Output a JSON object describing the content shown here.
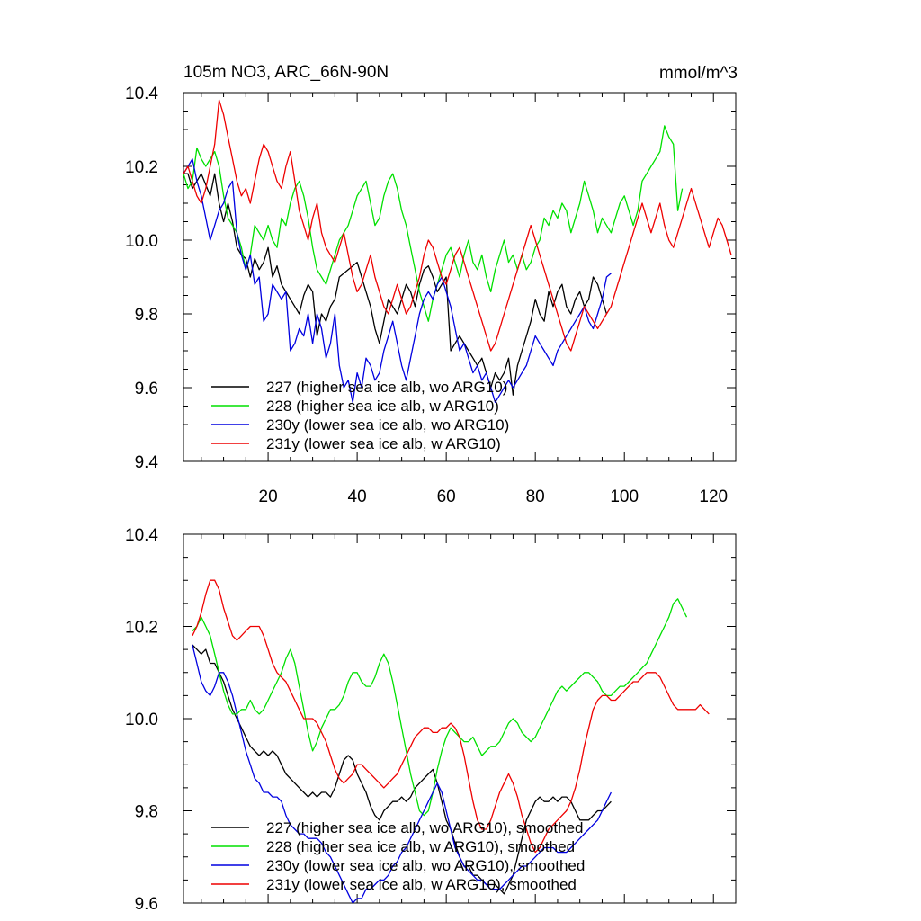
{
  "title": "105m NO3, ARC_66N-90N",
  "units": "mmol/m^3",
  "colors": {
    "s227": "#000000",
    "s228": "#00e000",
    "s230y": "#0000e0",
    "s231y": "#ee0000"
  },
  "chart_data": [
    {
      "type": "line",
      "title": "105m NO3, ARC_66N-90N",
      "ylabel": "mmol/m^3",
      "xlim": [
        1,
        125
      ],
      "ylim": [
        9.4,
        10.4
      ],
      "xticks": [
        20,
        40,
        60,
        80,
        100,
        120
      ],
      "yticks": [
        9.4,
        9.6,
        9.8,
        10.0,
        10.2,
        10.4
      ],
      "legend_position": "bottom-left",
      "series": [
        {
          "name": "227 (higher sea ice alb, wo ARG10)",
          "color": "#000000",
          "x_start": 1,
          "values": [
            10.18,
            10.18,
            10.14,
            10.16,
            10.18,
            10.15,
            10.12,
            10.18,
            10.1,
            10.05,
            10.1,
            10.05,
            9.98,
            9.96,
            9.95,
            9.9,
            9.95,
            9.92,
            9.94,
            9.98,
            9.9,
            9.93,
            9.88,
            9.86,
            9.84,
            9.82,
            9.8,
            9.85,
            9.88,
            9.86,
            9.74,
            9.8,
            9.78,
            9.82,
            9.84,
            9.9,
            9.91,
            9.92,
            9.93,
            9.94,
            9.9,
            9.86,
            9.82,
            9.76,
            9.72,
            9.78,
            9.84,
            9.82,
            9.8,
            9.84,
            9.88,
            9.86,
            9.82,
            9.88,
            9.92,
            9.93,
            9.9,
            9.86,
            9.88,
            9.9,
            9.7,
            9.72,
            9.74,
            9.72,
            9.7,
            9.68,
            9.66,
            9.68,
            9.64,
            9.6,
            9.64,
            9.62,
            9.64,
            9.68,
            9.58,
            9.66,
            9.7,
            9.74,
            9.78,
            9.84,
            9.8,
            9.78,
            9.86,
            9.82,
            9.86,
            9.88,
            9.82,
            9.8,
            9.84,
            9.86,
            9.82,
            9.84,
            9.9,
            9.88,
            9.84,
            9.8
          ]
        },
        {
          "name": "228 (higher sea ice alb, w ARG10)",
          "color": "#00e000",
          "x_start": 1,
          "values": [
            10.18,
            10.14,
            10.16,
            10.25,
            10.22,
            10.2,
            10.22,
            10.24,
            10.2,
            10.12,
            10.06,
            10.04,
            10.02,
            9.98,
            9.92,
            9.96,
            10.04,
            10.02,
            10.0,
            10.04,
            10.0,
            9.98,
            10.06,
            10.04,
            10.1,
            10.14,
            10.16,
            10.12,
            10.06,
            9.98,
            9.92,
            9.9,
            9.88,
            9.92,
            9.96,
            10.0,
            10.02,
            10.04,
            10.08,
            10.12,
            10.14,
            10.16,
            10.1,
            10.04,
            10.06,
            10.12,
            10.16,
            10.18,
            10.14,
            10.08,
            10.04,
            9.98,
            9.92,
            9.86,
            9.82,
            9.78,
            9.84,
            9.88,
            9.92,
            9.96,
            9.98,
            9.94,
            9.9,
            9.96,
            10.0,
            9.94,
            9.92,
            9.96,
            9.9,
            9.86,
            9.92,
            9.96,
            10.0,
            9.94,
            9.96,
            9.92,
            9.96,
            9.92,
            9.94,
            9.98,
            10.0,
            10.06,
            10.04,
            10.08,
            10.06,
            10.1,
            10.08,
            10.02,
            10.06,
            10.1,
            10.16,
            10.12,
            10.08,
            10.02,
            10.06,
            10.04,
            10.02,
            10.06,
            10.1,
            10.12,
            10.08,
            10.04,
            10.08,
            10.16,
            10.18,
            10.2,
            10.22,
            10.24,
            10.31,
            10.28,
            10.26,
            10.08,
            10.14
          ]
        },
        {
          "name": "230y (lower sea ice alb, wo ARG10)",
          "color": "#0000e0",
          "x_start": 1,
          "values": [
            10.18,
            10.2,
            10.22,
            10.16,
            10.12,
            10.06,
            10.0,
            10.04,
            10.08,
            10.1,
            10.14,
            10.16,
            10.02,
            9.96,
            9.92,
            9.96,
            9.88,
            9.9,
            9.78,
            9.8,
            9.88,
            9.86,
            9.84,
            9.86,
            9.7,
            9.72,
            9.76,
            9.74,
            9.8,
            9.72,
            9.8,
            9.76,
            9.68,
            9.72,
            9.8,
            9.66,
            9.6,
            9.62,
            9.56,
            9.64,
            9.6,
            9.68,
            9.66,
            9.62,
            9.64,
            9.7,
            9.74,
            9.78,
            9.72,
            9.66,
            9.62,
            9.68,
            9.74,
            9.8,
            9.84,
            9.86,
            9.84,
            9.88,
            9.9,
            9.86,
            9.82,
            9.76,
            9.7,
            9.72,
            9.68,
            9.64,
            9.66,
            9.62,
            9.64,
            9.6,
            9.56,
            9.58,
            9.6,
            9.62,
            9.6,
            9.62,
            9.64,
            9.66,
            9.7,
            9.74,
            9.72,
            9.7,
            9.68,
            9.66,
            9.7,
            9.72,
            9.74,
            9.76,
            9.78,
            9.8,
            9.82,
            9.78,
            9.76,
            9.8,
            9.84,
            9.9,
            9.91
          ]
        },
        {
          "name": "231y (lower sea ice alb, w ARG10)",
          "color": "#ee0000",
          "x_start": 1,
          "values": [
            10.18,
            10.2,
            10.16,
            10.12,
            10.1,
            10.14,
            10.2,
            10.26,
            10.38,
            10.34,
            10.28,
            10.22,
            10.16,
            10.12,
            10.14,
            10.1,
            10.16,
            10.22,
            10.26,
            10.24,
            10.2,
            10.16,
            10.14,
            10.2,
            10.24,
            10.16,
            10.08,
            10.04,
            10.0,
            10.06,
            10.1,
            10.02,
            9.98,
            9.96,
            9.94,
            9.98,
            10.02,
            9.96,
            9.9,
            9.86,
            9.88,
            9.92,
            9.96,
            9.9,
            9.86,
            9.82,
            9.8,
            9.84,
            9.88,
            9.84,
            9.8,
            9.82,
            9.86,
            9.9,
            9.96,
            10.0,
            9.98,
            9.94,
            9.9,
            9.88,
            9.92,
            9.96,
            9.98,
            9.94,
            9.9,
            9.86,
            9.82,
            9.78,
            9.74,
            9.7,
            9.72,
            9.76,
            9.8,
            9.84,
            9.88,
            9.92,
            9.96,
            10.0,
            10.04,
            10.0,
            9.96,
            9.92,
            9.88,
            9.84,
            9.8,
            9.76,
            9.72,
            9.7,
            9.74,
            9.78,
            9.82,
            9.8,
            9.78,
            9.76,
            9.78,
            9.8,
            9.82,
            9.86,
            9.9,
            9.94,
            9.98,
            10.02,
            10.06,
            10.1,
            10.06,
            10.02,
            10.06,
            10.1,
            10.04,
            10.0,
            9.98,
            10.02,
            10.06,
            10.1,
            10.14,
            10.1,
            10.06,
            10.02,
            9.98,
            10.02,
            10.06,
            10.04,
            10.0,
            9.96
          ]
        }
      ]
    },
    {
      "type": "line",
      "xlim": [
        1,
        125
      ],
      "ylim": [
        9.6,
        10.4
      ],
      "yticks": [
        9.6,
        9.8,
        10.0,
        10.2,
        10.4
      ],
      "legend_position": "bottom-left",
      "series": [
        {
          "name": "227 (higher sea ice alb, wo ARG10), smoothed",
          "color": "#000000",
          "x_start": 3,
          "values": [
            10.16,
            10.15,
            10.14,
            10.15,
            10.12,
            10.12,
            10.1,
            10.08,
            10.05,
            10.02,
            10.0,
            9.98,
            9.96,
            9.94,
            9.93,
            9.92,
            9.93,
            9.92,
            9.93,
            9.92,
            9.9,
            9.88,
            9.87,
            9.86,
            9.85,
            9.84,
            9.83,
            9.84,
            9.83,
            9.84,
            9.84,
            9.83,
            9.85,
            9.88,
            9.91,
            9.92,
            9.91,
            9.88,
            9.86,
            9.84,
            9.81,
            9.79,
            9.78,
            9.8,
            9.81,
            9.82,
            9.82,
            9.83,
            9.82,
            9.83,
            9.85,
            9.86,
            9.87,
            9.88,
            9.89,
            9.86,
            9.82,
            9.78,
            9.76,
            9.73,
            9.7,
            9.68,
            9.68,
            9.66,
            9.66,
            9.65,
            9.64,
            9.64,
            9.64,
            9.63,
            9.62,
            9.64,
            9.66,
            9.7,
            9.74,
            9.78,
            9.8,
            9.82,
            9.83,
            9.82,
            9.82,
            9.83,
            9.82,
            9.83,
            9.83,
            9.82,
            9.8,
            9.78,
            9.78,
            9.78,
            9.79,
            9.8,
            9.8,
            9.81,
            9.82
          ]
        },
        {
          "name": "228 (higher sea ice alb, w ARG10), smoothed",
          "color": "#00e000",
          "x_start": 3,
          "values": [
            10.19,
            10.2,
            10.22,
            10.2,
            10.18,
            10.14,
            10.1,
            10.06,
            10.03,
            10.01,
            10.01,
            10.02,
            10.02,
            10.04,
            10.02,
            10.01,
            10.02,
            10.04,
            10.06,
            10.08,
            10.1,
            10.13,
            10.15,
            10.12,
            10.07,
            10.02,
            9.97,
            9.93,
            9.95,
            9.98,
            10.0,
            10.02,
            10.02,
            10.03,
            10.05,
            10.08,
            10.1,
            10.1,
            10.08,
            10.07,
            10.07,
            10.09,
            10.12,
            10.14,
            10.12,
            10.08,
            10.03,
            9.98,
            9.93,
            9.88,
            9.84,
            9.8,
            9.79,
            9.8,
            9.84,
            9.89,
            9.93,
            9.96,
            9.98,
            9.97,
            9.96,
            9.95,
            9.95,
            9.96,
            9.94,
            9.92,
            9.93,
            9.94,
            9.94,
            9.95,
            9.97,
            9.99,
            10.0,
            9.99,
            9.97,
            9.96,
            9.95,
            9.96,
            9.98,
            10.0,
            10.02,
            10.04,
            10.06,
            10.07,
            10.06,
            10.07,
            10.08,
            10.09,
            10.1,
            10.1,
            10.09,
            10.08,
            10.06,
            10.05,
            10.05,
            10.06,
            10.07,
            10.07,
            10.08,
            10.09,
            10.1,
            10.11,
            10.12,
            10.14,
            10.16,
            10.18,
            10.2,
            10.22,
            10.25,
            10.26,
            10.24,
            10.22
          ]
        },
        {
          "name": "230y (lower sea ice alb, wo ARG10), smoothed",
          "color": "#0000e0",
          "x_start": 3,
          "values": [
            10.16,
            10.12,
            10.08,
            10.06,
            10.05,
            10.07,
            10.1,
            10.1,
            10.08,
            10.05,
            10.01,
            9.97,
            9.93,
            9.9,
            9.87,
            9.86,
            9.84,
            9.84,
            9.83,
            9.83,
            9.82,
            9.79,
            9.77,
            9.76,
            9.75,
            9.75,
            9.74,
            9.74,
            9.74,
            9.73,
            9.71,
            9.7,
            9.68,
            9.66,
            9.64,
            9.62,
            9.6,
            9.61,
            9.61,
            9.63,
            9.63,
            9.64,
            9.65,
            9.65,
            9.66,
            9.68,
            9.69,
            9.71,
            9.72,
            9.74,
            9.76,
            9.78,
            9.8,
            9.82,
            9.84,
            9.86,
            9.84,
            9.8,
            9.76,
            9.72,
            9.7,
            9.68,
            9.67,
            9.66,
            9.65,
            9.65,
            9.64,
            9.63,
            9.63,
            9.63,
            9.64,
            9.65,
            9.66,
            9.67,
            9.68,
            9.68,
            9.69,
            9.7,
            9.71,
            9.72,
            9.72,
            9.72,
            9.71,
            9.71,
            9.71,
            9.72,
            9.73,
            9.74,
            9.75,
            9.76,
            9.77,
            9.78,
            9.8,
            9.82,
            9.84
          ]
        },
        {
          "name": "231y (lower sea ice alb, w ARG10), smoothed",
          "color": "#ee0000",
          "x_start": 3,
          "values": [
            10.18,
            10.2,
            10.23,
            10.27,
            10.3,
            10.3,
            10.28,
            10.24,
            10.21,
            10.18,
            10.17,
            10.18,
            10.19,
            10.2,
            10.2,
            10.2,
            10.18,
            10.15,
            10.12,
            10.1,
            10.09,
            10.08,
            10.06,
            10.04,
            10.02,
            10.0,
            10.0,
            10.0,
            9.99,
            9.97,
            9.95,
            9.92,
            9.89,
            9.87,
            9.86,
            9.87,
            9.88,
            9.9,
            9.9,
            9.89,
            9.88,
            9.87,
            9.86,
            9.85,
            9.86,
            9.87,
            9.88,
            9.9,
            9.92,
            9.94,
            9.96,
            9.97,
            9.98,
            9.98,
            9.97,
            9.97,
            9.98,
            9.98,
            9.99,
            9.98,
            9.96,
            9.92,
            9.87,
            9.82,
            9.78,
            9.76,
            9.76,
            9.78,
            9.81,
            9.84,
            9.86,
            9.88,
            9.86,
            9.83,
            9.79,
            9.76,
            9.73,
            9.71,
            9.72,
            9.74,
            9.76,
            9.77,
            9.78,
            9.79,
            9.8,
            9.82,
            9.85,
            9.89,
            9.94,
            9.98,
            10.02,
            10.04,
            10.05,
            10.05,
            10.04,
            10.04,
            10.05,
            10.06,
            10.07,
            10.08,
            10.08,
            10.09,
            10.1,
            10.1,
            10.1,
            10.09,
            10.07,
            10.05,
            10.03,
            10.02,
            10.02,
            10.02,
            10.02,
            10.02,
            10.03,
            10.02,
            10.01
          ]
        }
      ]
    }
  ]
}
